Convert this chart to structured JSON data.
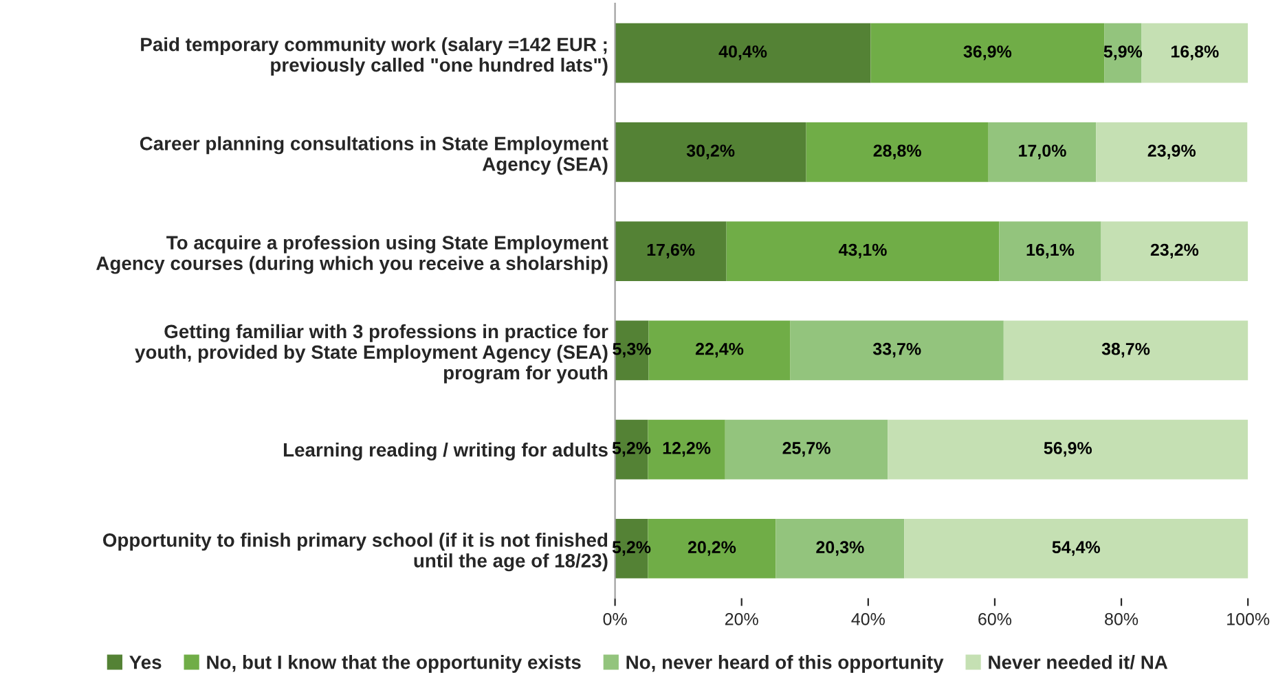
{
  "chart_data": {
    "type": "bar",
    "orientation": "horizontal",
    "stacked": true,
    "categories": [
      "Paid temporary community work (salary =142 EUR ;\npreviously called \"one hundred lats\")",
      "Career planning consultations in State Employment\nAgency (SEA)",
      "To acquire a profession using State Employment\nAgency courses (during which you receive a sholarship)",
      "Getting familiar with 3 professions in practice for\nyouth, provided by State Employment Agency (SEA)\nprogram for youth",
      "Learning reading / writing for adults",
      "Opportunity to finish primary school (if it is not finished\nuntil the age of 18/23)"
    ],
    "series": [
      {
        "name": "Yes",
        "color": "#548235",
        "values": [
          40.4,
          30.2,
          17.6,
          5.3,
          5.2,
          5.2
        ],
        "value_labels": [
          "40,4%",
          "30,2%",
          "17,6%",
          "5,3%",
          "5,2%",
          "5,2%"
        ]
      },
      {
        "name": "No, but I know that the opportunity exists",
        "color": "#70ad47",
        "values": [
          36.9,
          28.8,
          43.1,
          22.4,
          12.2,
          20.2
        ],
        "value_labels": [
          "36,9%",
          "28,8%",
          "43,1%",
          "22,4%",
          "12,2%",
          "20,2%"
        ]
      },
      {
        "name": "No, never heard of this opportunity",
        "color": "#93c47d",
        "values": [
          5.9,
          17.0,
          16.1,
          33.7,
          25.7,
          20.3
        ],
        "value_labels": [
          "5,9%",
          "17,0%",
          "16,1%",
          "33,7%",
          "25,7%",
          "20,3%"
        ]
      },
      {
        "name": "Never needed it/ NA",
        "color": "#c5e0b3",
        "values": [
          16.8,
          23.9,
          23.2,
          38.7,
          56.9,
          54.4
        ],
        "value_labels": [
          "16,8%",
          "23,9%",
          "23,2%",
          "38,7%",
          "56,9%",
          "54,4%"
        ]
      }
    ],
    "xlim": [
      0,
      100
    ],
    "xticks": [
      {
        "value": 0,
        "label": "0%"
      },
      {
        "value": 20,
        "label": "20%"
      },
      {
        "value": 40,
        "label": "40%"
      },
      {
        "value": 60,
        "label": "60%"
      },
      {
        "value": 80,
        "label": "80%"
      },
      {
        "value": 100,
        "label": "100%"
      }
    ],
    "legend": "bottom",
    "grid": false
  }
}
